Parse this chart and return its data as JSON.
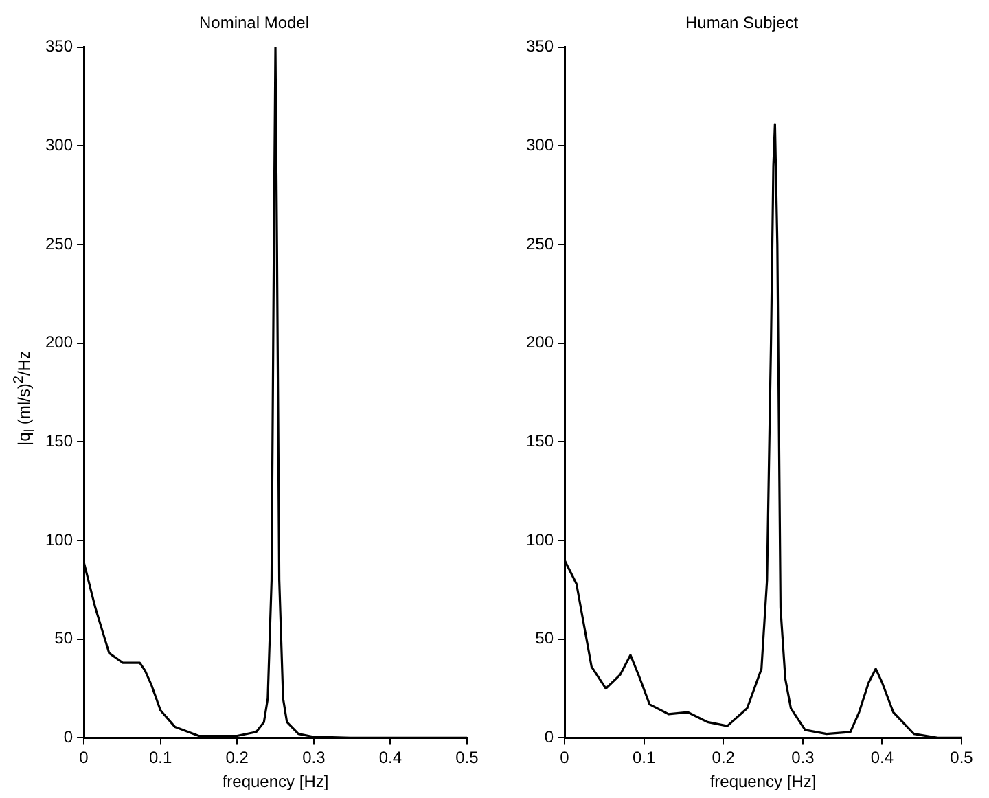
{
  "chart_data": [
    {
      "type": "line",
      "title": "Nominal Model",
      "xlabel": "frequency [Hz]",
      "ylabel": "|q$_{l}$ (ml/s)$^{2}$/Hz",
      "xlim": [
        0,
        0.5
      ],
      "ylim": [
        0,
        350
      ],
      "xticks": [
        0,
        0.1,
        0.2,
        0.3,
        0.4,
        0.5
      ],
      "yticks": [
        0,
        50,
        100,
        150,
        200,
        250,
        300,
        350
      ],
      "grid": false,
      "legend": false,
      "marker": "none",
      "line_style": "solid",
      "series": [
        {
          "color": "#000000",
          "x": [
            0,
            0.015,
            0.033,
            0.051,
            0.062,
            0.073,
            0.08,
            0.088,
            0.1,
            0.119,
            0.15,
            0.2,
            0.225,
            0.235,
            0.24,
            0.245,
            0.248,
            0.25,
            0.252,
            0.255,
            0.26,
            0.265,
            0.28,
            0.3,
            0.35,
            0.4,
            0.5
          ],
          "values": [
            89,
            66,
            43,
            38,
            38,
            38,
            34,
            27,
            14,
            5.5,
            1,
            1,
            3,
            8,
            20,
            80,
            250,
            350,
            250,
            80,
            20,
            8,
            2,
            0.5,
            0,
            0,
            0
          ]
        }
      ]
    },
    {
      "type": "line",
      "title": "Human Subject",
      "xlabel": "frequency [Hz]",
      "xlim": [
        0,
        0.5
      ],
      "ylim": [
        0,
        350
      ],
      "xticks": [
        0,
        0.1,
        0.2,
        0.3,
        0.4,
        0.5
      ],
      "yticks": [
        0,
        50,
        100,
        150,
        200,
        250,
        300,
        350
      ],
      "grid": false,
      "legend": false,
      "marker": "none",
      "line_style": "solid",
      "series": [
        {
          "color": "#000000",
          "x": [
            0,
            0.015,
            0.034,
            0.052,
            0.07,
            0.083,
            0.095,
            0.107,
            0.131,
            0.155,
            0.18,
            0.205,
            0.23,
            0.248,
            0.255,
            0.26,
            0.263,
            0.265,
            0.268,
            0.272,
            0.278,
            0.285,
            0.303,
            0.33,
            0.36,
            0.371,
            0.383,
            0.392,
            0.4,
            0.414,
            0.44,
            0.47,
            0.5
          ],
          "values": [
            90,
            78,
            36,
            25,
            32,
            42,
            30,
            17,
            12,
            13,
            8,
            6,
            15,
            35,
            80,
            200,
            290,
            311,
            250,
            66,
            30,
            15,
            4,
            2,
            3,
            13,
            28,
            35,
            28,
            13,
            2,
            0,
            0
          ]
        }
      ]
    }
  ]
}
